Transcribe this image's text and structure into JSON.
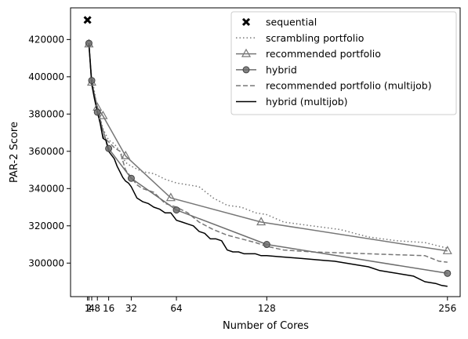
{
  "chart_data": {
    "type": "line",
    "title": "",
    "xlabel": "Number of Cores",
    "ylabel": "PAR-2 Score",
    "xlim": [
      -11,
      265
    ],
    "ylim": [
      282000,
      437000
    ],
    "xticks": [
      1,
      2,
      4,
      8,
      16,
      32,
      64,
      128,
      256
    ],
    "yticks": [
      300000,
      320000,
      340000,
      360000,
      380000,
      400000,
      420000
    ],
    "ytick_labels": [
      "300000",
      "320000",
      "340000",
      "360000",
      "380000",
      "400000",
      "420000"
    ],
    "grid": false,
    "legend_position": "top-right",
    "series": [
      {
        "name": "sequential",
        "style": "x-marker",
        "color": "#000000",
        "x": [
          1
        ],
        "y": [
          430500
        ]
      },
      {
        "name": "scrambling portfolio",
        "style": "dotted",
        "color": "#777777",
        "x": [
          2,
          4,
          5,
          8,
          10,
          12,
          16,
          20,
          24,
          28,
          32,
          40,
          48,
          56,
          64,
          72,
          80,
          90,
          100,
          110,
          120,
          128,
          140,
          160,
          180,
          200,
          220,
          240,
          256
        ],
        "y": [
          417000,
          399000,
          396000,
          383000,
          378000,
          372000,
          366000,
          364000,
          360000,
          354000,
          352000,
          349000,
          348000,
          345000,
          343000,
          342000,
          341000,
          335000,
          331000,
          330000,
          327000,
          326000,
          322000,
          320000,
          318000,
          314000,
          312000,
          311000,
          308000
        ]
      },
      {
        "name": "recommended portfolio",
        "style": "solid-triangle",
        "color": "#777777",
        "x": [
          2,
          4,
          8,
          12,
          28,
          60,
          124,
          256
        ],
        "y": [
          417500,
          397000,
          383500,
          379000,
          357500,
          335000,
          322000,
          306500
        ]
      },
      {
        "name": "hybrid",
        "style": "solid-circle",
        "color": "#6e6e6e",
        "x": [
          2,
          4,
          8,
          16,
          32,
          64,
          128,
          256
        ],
        "y": [
          418000,
          398000,
          381000,
          361500,
          345500,
          328500,
          310000,
          294500
        ]
      },
      {
        "name": "recommended portfolio (multijob)",
        "style": "dashed",
        "color": "#777777",
        "x": [
          2,
          4,
          6,
          8,
          10,
          12,
          16,
          20,
          24,
          28,
          32,
          36,
          40,
          48,
          56,
          64,
          72,
          80,
          90,
          100,
          110,
          120,
          128,
          140,
          160,
          180,
          200,
          220,
          240,
          250,
          256
        ],
        "y": [
          418000,
          396000,
          390000,
          384000,
          378000,
          368000,
          365000,
          362000,
          360000,
          350000,
          346000,
          342000,
          340000,
          338000,
          332000,
          330000,
          327000,
          322000,
          318000,
          315000,
          313000,
          311000,
          309000,
          307000,
          306000,
          305500,
          305000,
          304500,
          304000,
          301000,
          300500
        ]
      },
      {
        "name": "hybrid (multijob)",
        "style": "solid",
        "color": "#000000",
        "x": [
          2,
          4,
          6,
          8,
          10,
          12,
          14,
          16,
          18,
          20,
          22,
          24,
          26,
          28,
          30,
          32,
          36,
          40,
          44,
          48,
          52,
          56,
          60,
          64,
          68,
          72,
          76,
          80,
          84,
          88,
          92,
          96,
          100,
          104,
          108,
          112,
          116,
          120,
          124,
          128,
          136,
          144,
          152,
          160,
          168,
          176,
          184,
          192,
          200,
          208,
          216,
          224,
          232,
          240,
          248,
          252,
          256
        ],
        "y": [
          418000,
          396000,
          388000,
          381000,
          375000,
          367000,
          366000,
          360000,
          358000,
          356000,
          352000,
          349000,
          346000,
          344000,
          343000,
          341000,
          335000,
          333000,
          332000,
          330000,
          329000,
          327000,
          327000,
          323000,
          322000,
          321000,
          320000,
          317000,
          316000,
          313000,
          313000,
          312000,
          307000,
          306000,
          306000,
          305000,
          305000,
          305000,
          304000,
          304000,
          303500,
          303000,
          302500,
          302000,
          301500,
          301000,
          300000,
          299000,
          298000,
          296000,
          295000,
          294000,
          293000,
          290000,
          289000,
          288000,
          287500
        ]
      }
    ]
  }
}
